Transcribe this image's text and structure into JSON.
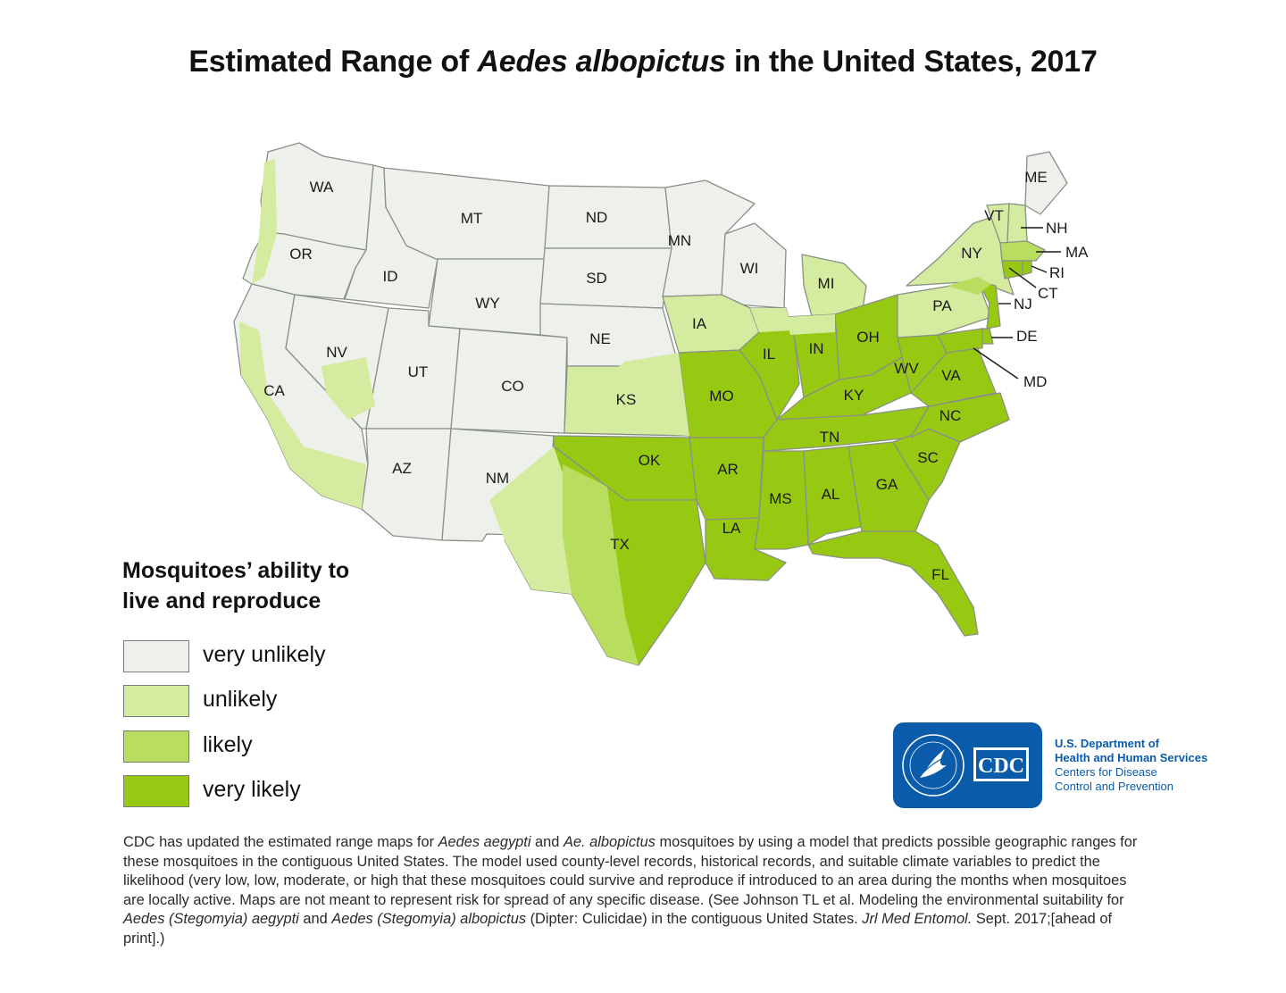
{
  "title": {
    "prefix": "Estimated Range of ",
    "species": "Aedes albopictus",
    "suffix": " in the United States, 2017"
  },
  "colors": {
    "very_unlikely": "#edf0eb",
    "unlikely": "#d5eba0",
    "likely": "#b9dd5e",
    "very_likely": "#97c912",
    "state_border": "#8a8f88",
    "agency_blue": "#0b5bab"
  },
  "map": {
    "states": [
      "WA",
      "OR",
      "CA",
      "ID",
      "NV",
      "MT",
      "WY",
      "UT",
      "AZ",
      "CO",
      "NM",
      "ND",
      "SD",
      "NE",
      "KS",
      "OK",
      "TX",
      "MN",
      "IA",
      "MO",
      "AR",
      "LA",
      "WI",
      "IL",
      "MI",
      "IN",
      "OH",
      "KY",
      "TN",
      "MS",
      "AL",
      "GA",
      "FL",
      "SC",
      "NC",
      "VA",
      "WV",
      "PA",
      "NY",
      "ME",
      "VT",
      "NH",
      "MA",
      "RI",
      "CT",
      "NJ",
      "DE",
      "MD"
    ]
  },
  "legend": {
    "title_line1": "Mosquitoes’ ability to",
    "title_line2": "live and reproduce",
    "items": [
      {
        "key": "very_unlikely",
        "label": "very unlikely"
      },
      {
        "key": "unlikely",
        "label": "unlikely"
      },
      {
        "key": "likely",
        "label": "likely"
      },
      {
        "key": "very_likely",
        "label": "very likely"
      }
    ]
  },
  "logo": {
    "text": "CDC",
    "agency_line1": "U.S. Department of",
    "agency_line2": "Health and Human Services",
    "agency_line3": "Centers for Disease",
    "agency_line4": "Control and Prevention"
  },
  "footnote": {
    "p1": "CDC has updated the estimated range maps for ",
    "i1": "Aedes aegypti",
    "p2": " and ",
    "i2": "Ae. albopictus",
    "p3": " mosquitoes by using a model that predicts possible geographic ranges for these mosquitoes in the contiguous United States. The model used county-level records, historical records, and suitable climate variables to predict the likelihood (very low, low, moderate, or high that these mosquitoes could survive and reproduce if introduced to an area during the months when mosquitoes are locally active. Maps are not meant to represent risk for spread of any specific disease. (See Johnson TL et al. Modeling the environmental suitability for ",
    "i3": "Aedes (Stegomyia) aegypti",
    "p4": " and ",
    "i4": "Aedes (Stegomyia) albopictus",
    "p5": " (Dipter: Culicidae) in the contiguous United States. ",
    "i5": "Jrl Med Entomol.",
    "p6": " Sept. 2017;[ahead of print].)"
  }
}
